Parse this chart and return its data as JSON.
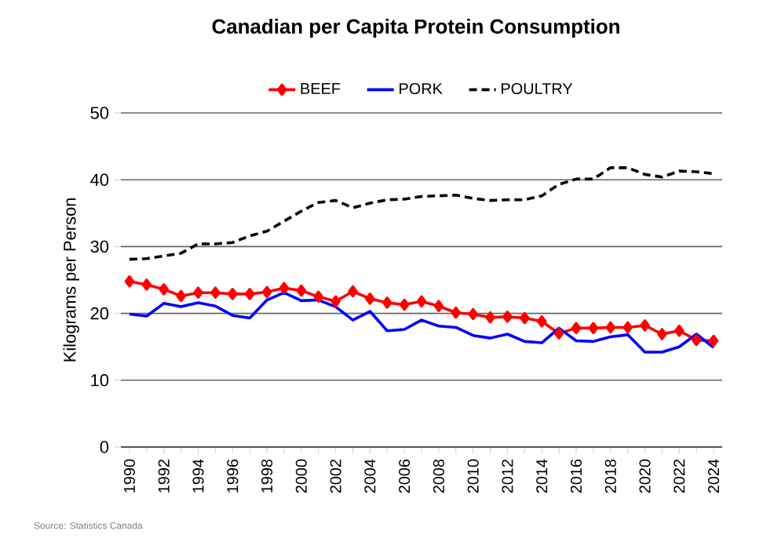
{
  "chart_data": {
    "type": "line",
    "title": "Canadian per Capita Protein Consumption",
    "ylabel": "Kilograms per Person",
    "x": [
      1990,
      1991,
      1992,
      1993,
      1994,
      1995,
      1996,
      1997,
      1998,
      1999,
      2000,
      2001,
      2002,
      2003,
      2004,
      2005,
      2006,
      2007,
      2008,
      2009,
      2010,
      2011,
      2012,
      2013,
      2014,
      2015,
      2016,
      2017,
      2018,
      2019,
      2020,
      2021,
      2022,
      2023,
      2024
    ],
    "series": [
      {
        "name": "BEEF",
        "color": "#ff0000",
        "marker": "diamond",
        "line_style": "solid",
        "values": [
          24.8,
          24.3,
          23.6,
          22.6,
          23.1,
          23.1,
          22.9,
          22.9,
          23.2,
          23.8,
          23.4,
          22.5,
          21.8,
          23.3,
          22.2,
          21.6,
          21.3,
          21.8,
          21.1,
          20.1,
          19.9,
          19.4,
          19.5,
          19.3,
          18.8,
          17.0,
          17.8,
          17.8,
          17.9,
          17.9,
          18.2,
          16.9,
          17.4,
          16.0,
          15.9
        ]
      },
      {
        "name": "PORK",
        "color": "#0000ff",
        "marker": "none",
        "line_style": "solid",
        "values": [
          19.9,
          19.6,
          21.5,
          21.0,
          21.6,
          21.1,
          19.7,
          19.3,
          22.0,
          23.1,
          21.9,
          22.0,
          21.0,
          19.0,
          20.3,
          17.4,
          17.6,
          19.0,
          18.1,
          17.9,
          16.7,
          16.3,
          16.9,
          15.8,
          15.6,
          17.8,
          15.9,
          15.8,
          16.5,
          16.8,
          14.2,
          14.2,
          15.0,
          16.9,
          14.9
        ]
      },
      {
        "name": "POULTRY",
        "color": "#000000",
        "marker": "none",
        "line_style": "dashed",
        "values": [
          28.1,
          28.2,
          28.6,
          29.0,
          30.4,
          30.4,
          30.6,
          31.6,
          32.3,
          33.8,
          35.3,
          36.6,
          36.9,
          35.8,
          36.5,
          37.0,
          37.1,
          37.5,
          37.6,
          37.7,
          37.2,
          36.9,
          37.0,
          37.0,
          37.6,
          39.3,
          40.1,
          40.1,
          41.8,
          41.8,
          40.8,
          40.4,
          41.3,
          41.2,
          40.9
        ]
      }
    ],
    "xlim": [
      1989.5,
      2024.5
    ],
    "xticks": [
      {
        "value": 1990,
        "label": "1990"
      },
      {
        "value": 1991,
        "label": null
      },
      {
        "value": 1992,
        "label": "1992"
      },
      {
        "value": 1993,
        "label": null
      },
      {
        "value": 1994,
        "label": "1994"
      },
      {
        "value": 1995,
        "label": null
      },
      {
        "value": 1996,
        "label": "1996"
      },
      {
        "value": 1997,
        "label": null
      },
      {
        "value": 1998,
        "label": "1998"
      },
      {
        "value": 1999,
        "label": null
      },
      {
        "value": 2000,
        "label": "2000"
      },
      {
        "value": 2001,
        "label": null
      },
      {
        "value": 2002,
        "label": "2002"
      },
      {
        "value": 2003,
        "label": null
      },
      {
        "value": 2004,
        "label": "2004"
      },
      {
        "value": 2005,
        "label": null
      },
      {
        "value": 2006,
        "label": "2006"
      },
      {
        "value": 2007,
        "label": null
      },
      {
        "value": 2008,
        "label": "2008"
      },
      {
        "value": 2009,
        "label": null
      },
      {
        "value": 2010,
        "label": "2010"
      },
      {
        "value": 2011,
        "label": null
      },
      {
        "value": 2012,
        "label": "2012"
      },
      {
        "value": 2013,
        "label": null
      },
      {
        "value": 2014,
        "label": "2014"
      },
      {
        "value": 2015,
        "label": null
      },
      {
        "value": 2016,
        "label": "2016"
      },
      {
        "value": 2017,
        "label": null
      },
      {
        "value": 2018,
        "label": "2018"
      },
      {
        "value": 2019,
        "label": null
      },
      {
        "value": 2020,
        "label": "2020"
      },
      {
        "value": 2021,
        "label": null
      },
      {
        "value": 2022,
        "label": "2022"
      },
      {
        "value": 2023,
        "label": null
      },
      {
        "value": 2024,
        "label": "2024"
      }
    ],
    "ylim": [
      0,
      50
    ],
    "yticks": [
      0,
      10,
      20,
      30,
      40,
      50
    ],
    "grid": "y",
    "legend": "top",
    "annotations": [
      "Source:  Statistics Canada"
    ]
  }
}
